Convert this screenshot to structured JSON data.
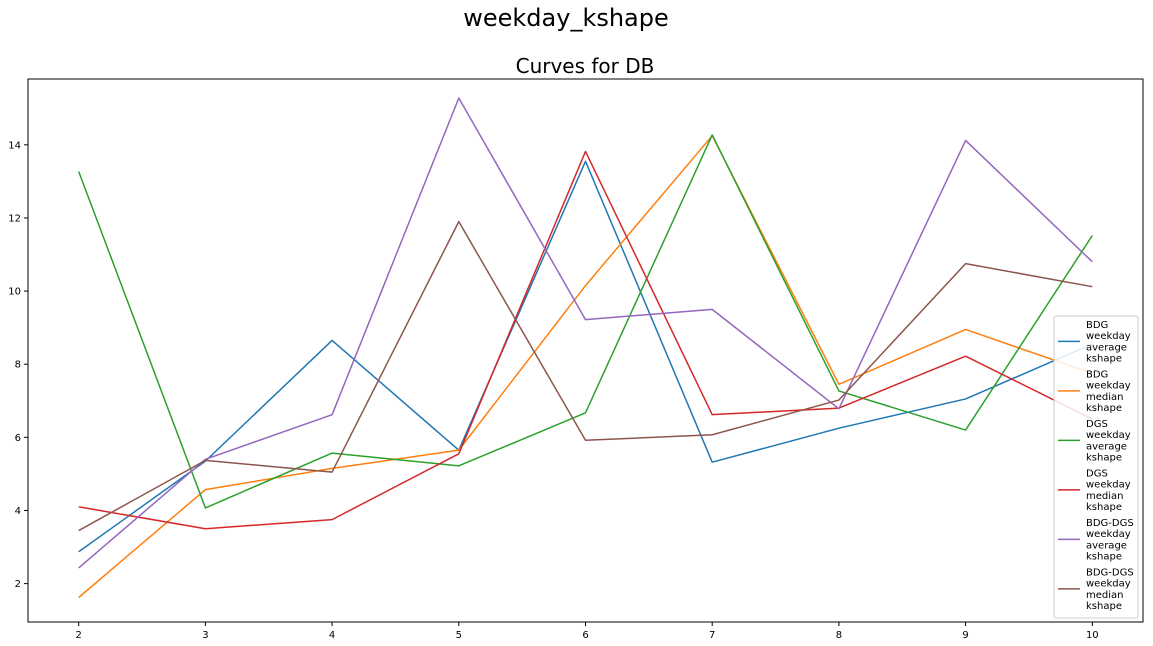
{
  "figure": {
    "suptitle": "weekday_kshape"
  },
  "chart_data": {
    "type": "line",
    "title": "Curves for DB",
    "xlabel": "",
    "ylabel": "",
    "x": [
      2,
      3,
      4,
      5,
      6,
      7,
      8,
      9,
      10
    ],
    "xticks": [
      "2",
      "3",
      "4",
      "5",
      "6",
      "7",
      "8",
      "9",
      "10"
    ],
    "yticks": [
      "2",
      "4",
      "6",
      "8",
      "10",
      "12",
      "14"
    ],
    "xlim": [
      1.6,
      10.4
    ],
    "ylim": [
      0.95,
      15.8
    ],
    "grid": false,
    "legend_position": "right",
    "series": [
      {
        "name": "BDG weekday average kshape",
        "legend_lines": [
          "BDG",
          "weekday",
          "average",
          " kshape"
        ],
        "color": "#1f77b4",
        "values": [
          2.87,
          5.35,
          8.65,
          5.65,
          13.55,
          5.32,
          6.25,
          7.05,
          8.55
        ]
      },
      {
        "name": "BDG weekday median kshape",
        "legend_lines": [
          "BDG",
          "weekday",
          " median",
          " kshape"
        ],
        "color": "#ff7f0e",
        "values": [
          1.62,
          4.57,
          5.15,
          5.65,
          10.15,
          14.25,
          7.45,
          8.95,
          7.75
        ]
      },
      {
        "name": "DGS weekday average kshape",
        "legend_lines": [
          "DGS",
          "weekday",
          "average",
          " kshape"
        ],
        "color": "#2ca02c",
        "values": [
          13.27,
          4.07,
          5.57,
          5.22,
          6.67,
          14.27,
          7.27,
          6.2,
          11.52
        ]
      },
      {
        "name": "DGS weekday median kshape",
        "legend_lines": [
          "DGS",
          "weekday",
          " median",
          " kshape"
        ],
        "color": "#d62728",
        "values": [
          4.1,
          3.5,
          3.75,
          5.55,
          13.82,
          6.62,
          6.8,
          8.22,
          6.5
        ]
      },
      {
        "name": "BDG-DGS weekday average kshape",
        "legend_lines": [
          "BDG-DGS",
          "weekday",
          "average",
          " kshape"
        ],
        "color": "#9467bd",
        "values": [
          2.43,
          5.4,
          6.62,
          15.28,
          9.22,
          9.5,
          6.78,
          14.12,
          10.8
        ]
      },
      {
        "name": "BDG-DGS weekday median kshape",
        "legend_lines": [
          "BDG-DGS",
          "weekday",
          " median",
          " kshape"
        ],
        "color": "#8c564b",
        "values": [
          3.45,
          5.37,
          5.05,
          11.9,
          5.92,
          6.07,
          7.02,
          10.75,
          10.12
        ]
      }
    ]
  }
}
